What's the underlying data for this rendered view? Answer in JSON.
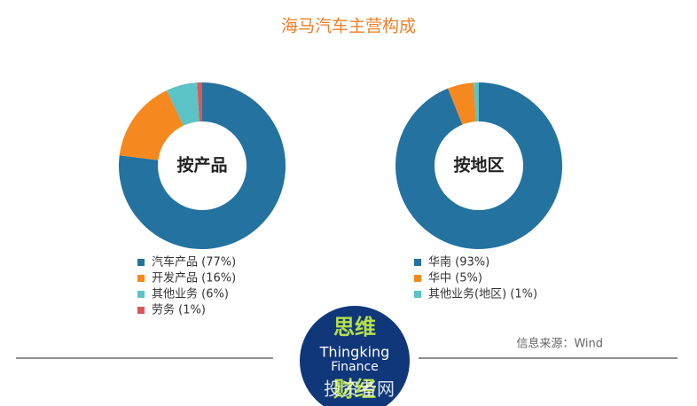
{
  "title": "海马汽车主营构成",
  "chart_data": [
    {
      "type": "pie",
      "center_label": "按产品",
      "categories": [
        "汽车产品 (77%)",
        "开发产品 (16%)",
        "其他业务 (6%)",
        "劳务 (1%)"
      ],
      "values": [
        77,
        16,
        6,
        1
      ],
      "colors": [
        "#23729f",
        "#f5891f",
        "#5cc3c6",
        "#d9595a"
      ]
    },
    {
      "type": "pie",
      "center_label": "按地区",
      "categories": [
        "华南 (93%)",
        "华中 (5%)",
        "其他业务(地区) (1%)"
      ],
      "values": [
        93,
        5,
        1
      ],
      "colors": [
        "#23729f",
        "#f5891f",
        "#5cc3c6"
      ]
    }
  ],
  "source": "信息来源：Wind",
  "logo": {
    "top": "思维",
    "line1": "Thingking",
    "line2": "Finance",
    "bottom": "财经"
  },
  "watermark": "投资者网"
}
